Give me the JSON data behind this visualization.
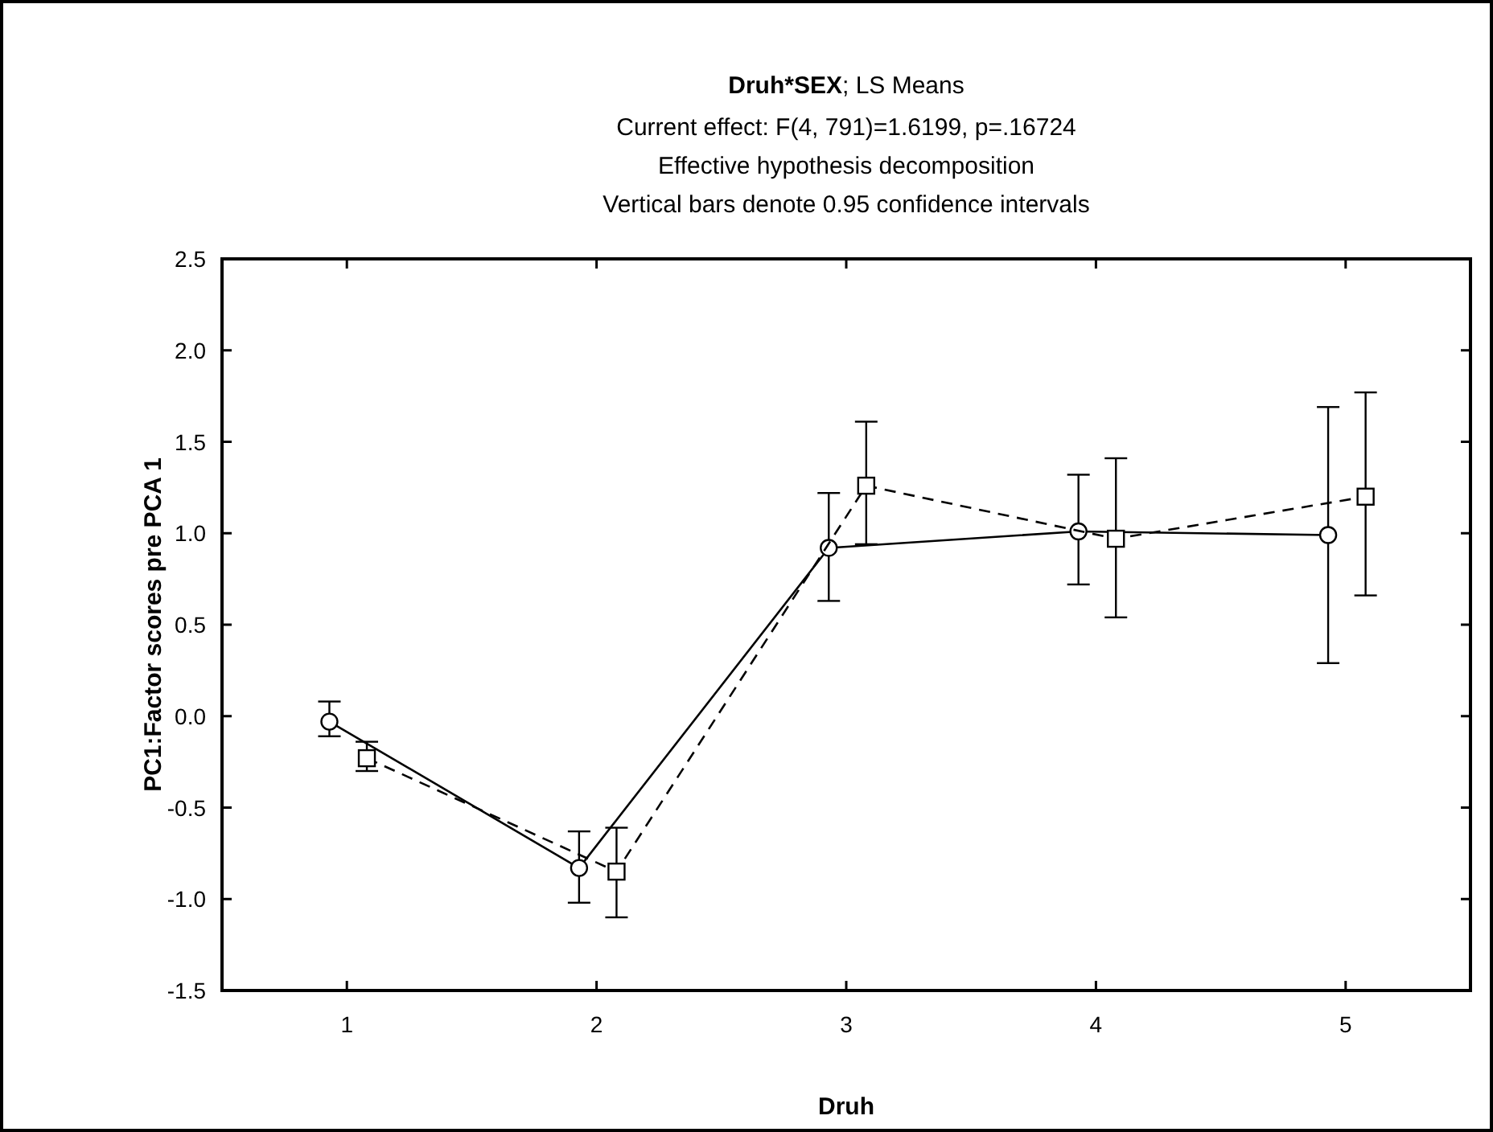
{
  "chart_data": {
    "type": "line",
    "title": "Druh*SEX; LS Means",
    "subtitle": "Current effect: F(4, 791)=1.6199, p=.16724\nEffective hypothesis decomposition\nVertical bars denote 0.95 confidence intervals",
    "xlabel": "Druh",
    "ylabel": "PC1:Factor scores pre PCA 1",
    "xlim": [
      0.5,
      5.5
    ],
    "xticks": [
      1,
      2,
      3,
      4,
      5
    ],
    "ylim": [
      -1.5,
      2.5
    ],
    "yticks": [
      {
        "value": -1.5,
        "label": "-1.5"
      },
      {
        "value": -1,
        "label": "-1.0"
      },
      {
        "value": -0.5,
        "label": "-0.5"
      },
      {
        "value": 0,
        "label": "0.0"
      },
      {
        "value": 0.5,
        "label": "0.5"
      },
      {
        "value": 1,
        "label": "1.0"
      },
      {
        "value": 1.5,
        "label": "1.5"
      },
      {
        "value": 2,
        "label": "2.0"
      },
      {
        "value": 2.5,
        "label": "2.5"
      }
    ],
    "grid": false,
    "series": [
      {
        "color": "#000000",
        "marker": "circle",
        "line_style": "solid",
        "x": [
          0.93,
          1.93,
          2.93,
          3.93,
          4.93
        ],
        "values": [
          -0.03,
          -0.83,
          0.92,
          1.01,
          0.99
        ],
        "errors": [
          [
            -0.11,
            0.08
          ],
          [
            -1.02,
            -0.63
          ],
          [
            0.63,
            1.22
          ],
          [
            0.72,
            1.32
          ],
          [
            0.29,
            1.69
          ]
        ]
      },
      {
        "color": "#000000",
        "marker": "square",
        "line_style": "dashed",
        "x": [
          1.08,
          2.08,
          3.08,
          4.08,
          5.08
        ],
        "values": [
          -0.23,
          -0.85,
          1.26,
          0.97,
          1.2
        ],
        "errors": [
          [
            -0.3,
            -0.14
          ],
          [
            -1.1,
            -0.61
          ],
          [
            0.94,
            1.61
          ],
          [
            0.54,
            1.41
          ],
          [
            0.66,
            1.77
          ]
        ]
      }
    ]
  }
}
